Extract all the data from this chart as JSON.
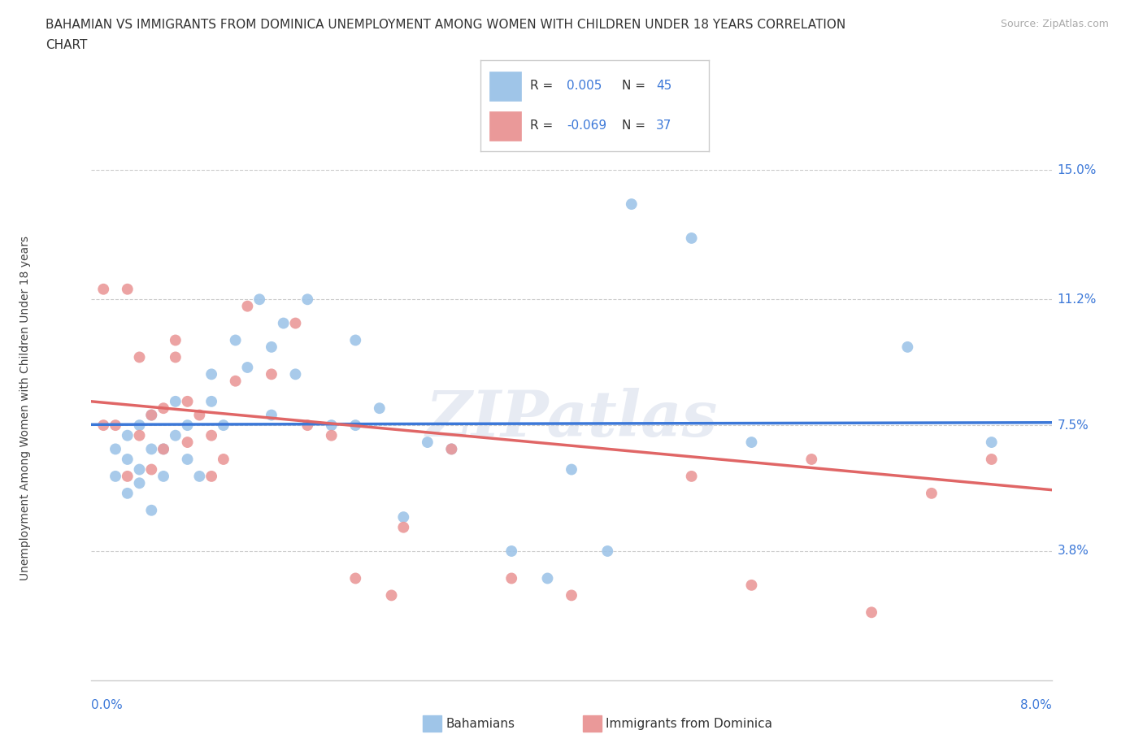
{
  "title_line1": "BAHAMIAN VS IMMIGRANTS FROM DOMINICA UNEMPLOYMENT AMONG WOMEN WITH CHILDREN UNDER 18 YEARS CORRELATION",
  "title_line2": "CHART",
  "source_text": "Source: ZipAtlas.com",
  "ylabel": "Unemployment Among Women with Children Under 18 years",
  "x_min": 0.0,
  "x_max": 0.08,
  "y_min": 0.0,
  "y_max": 0.16,
  "x_tick_labels": [
    "0.0%",
    "8.0%"
  ],
  "y_tick_positions": [
    0.038,
    0.075,
    0.112,
    0.15
  ],
  "y_tick_labels": [
    "3.8%",
    "7.5%",
    "11.2%",
    "15.0%"
  ],
  "blue_color": "#9fc5e8",
  "pink_color": "#ea9999",
  "blue_line_color": "#3c78d8",
  "pink_line_color": "#e06666",
  "watermark_text": "ZIPatlas",
  "blue_scatter_x": [
    0.002,
    0.002,
    0.003,
    0.003,
    0.003,
    0.004,
    0.004,
    0.004,
    0.005,
    0.005,
    0.005,
    0.006,
    0.006,
    0.007,
    0.007,
    0.008,
    0.008,
    0.009,
    0.01,
    0.01,
    0.011,
    0.012,
    0.013,
    0.014,
    0.015,
    0.015,
    0.016,
    0.017,
    0.018,
    0.02,
    0.022,
    0.022,
    0.024,
    0.026,
    0.028,
    0.03,
    0.035,
    0.038,
    0.04,
    0.043,
    0.045,
    0.05,
    0.055,
    0.068,
    0.075
  ],
  "blue_scatter_y": [
    0.06,
    0.068,
    0.055,
    0.065,
    0.072,
    0.058,
    0.062,
    0.075,
    0.05,
    0.068,
    0.078,
    0.06,
    0.068,
    0.072,
    0.082,
    0.065,
    0.075,
    0.06,
    0.082,
    0.09,
    0.075,
    0.1,
    0.092,
    0.112,
    0.098,
    0.078,
    0.105,
    0.09,
    0.112,
    0.075,
    0.1,
    0.075,
    0.08,
    0.048,
    0.07,
    0.068,
    0.038,
    0.03,
    0.062,
    0.038,
    0.14,
    0.13,
    0.07,
    0.098,
    0.07
  ],
  "pink_scatter_x": [
    0.001,
    0.001,
    0.002,
    0.003,
    0.003,
    0.004,
    0.004,
    0.005,
    0.005,
    0.006,
    0.006,
    0.007,
    0.007,
    0.008,
    0.008,
    0.009,
    0.01,
    0.01,
    0.011,
    0.012,
    0.013,
    0.015,
    0.017,
    0.018,
    0.02,
    0.022,
    0.025,
    0.026,
    0.03,
    0.035,
    0.04,
    0.05,
    0.055,
    0.06,
    0.065,
    0.07,
    0.075
  ],
  "pink_scatter_y": [
    0.075,
    0.115,
    0.075,
    0.06,
    0.115,
    0.072,
    0.095,
    0.062,
    0.078,
    0.068,
    0.08,
    0.1,
    0.095,
    0.07,
    0.082,
    0.078,
    0.06,
    0.072,
    0.065,
    0.088,
    0.11,
    0.09,
    0.105,
    0.075,
    0.072,
    0.03,
    0.025,
    0.045,
    0.068,
    0.03,
    0.025,
    0.06,
    0.028,
    0.065,
    0.02,
    0.055,
    0.065
  ],
  "blue_trend_x0": 0.0,
  "blue_trend_x1": 0.08,
  "blue_trend_y0": 0.0752,
  "blue_trend_y1": 0.0758,
  "pink_trend_x0": 0.0,
  "pink_trend_x1": 0.08,
  "pink_trend_y0": 0.082,
  "pink_trend_y1": 0.056
}
